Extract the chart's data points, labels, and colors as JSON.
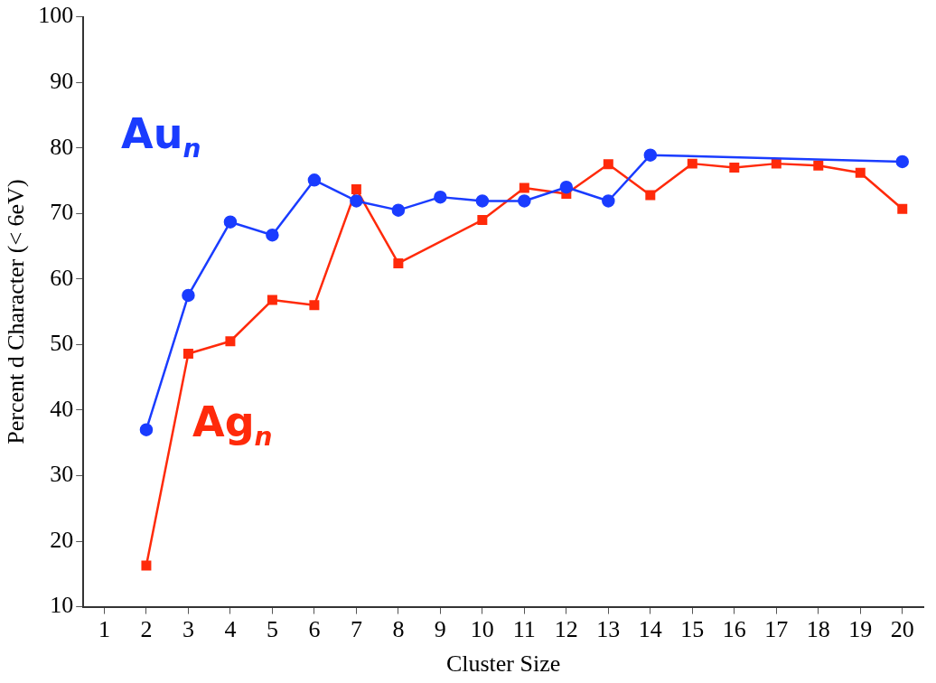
{
  "chart_data": {
    "type": "line",
    "xlabel": "Cluster Size",
    "ylabel": "Percent d Character (< 6eV)",
    "xlim": [
      0.5,
      20.5
    ],
    "xticks": [
      1,
      2,
      3,
      4,
      5,
      6,
      7,
      8,
      9,
      10,
      11,
      12,
      13,
      14,
      15,
      16,
      17,
      18,
      19,
      20
    ],
    "ylim": [
      10,
      100
    ],
    "yticks": [
      10,
      20,
      30,
      40,
      50,
      60,
      70,
      80,
      90,
      100
    ],
    "grid": false,
    "legend": false,
    "series": [
      {
        "name": "Au$_{n}$",
        "color": "#1a3cff",
        "marker": "circle",
        "x": [
          2,
          3,
          4,
          5,
          6,
          7,
          8,
          9,
          10,
          11,
          12,
          13,
          14,
          20
        ],
        "values": [
          37.0,
          57.5,
          68.7,
          66.7,
          75.1,
          71.9,
          70.5,
          72.5,
          71.9,
          71.9,
          74.0,
          71.9,
          78.9,
          77.9
        ]
      },
      {
        "name": "Ag$_{n}$",
        "color": "#ff2a0a",
        "marker": "square",
        "x": [
          2,
          3,
          4,
          5,
          6,
          7,
          8,
          10,
          11,
          12,
          13,
          14,
          15,
          16,
          17,
          18,
          19,
          20
        ],
        "values": [
          16.3,
          48.6,
          50.5,
          56.8,
          56.0,
          73.7,
          62.4,
          69.0,
          73.9,
          73.0,
          77.5,
          72.8,
          77.6,
          77.0,
          77.6,
          77.3,
          76.2,
          70.7
        ]
      }
    ]
  }
}
